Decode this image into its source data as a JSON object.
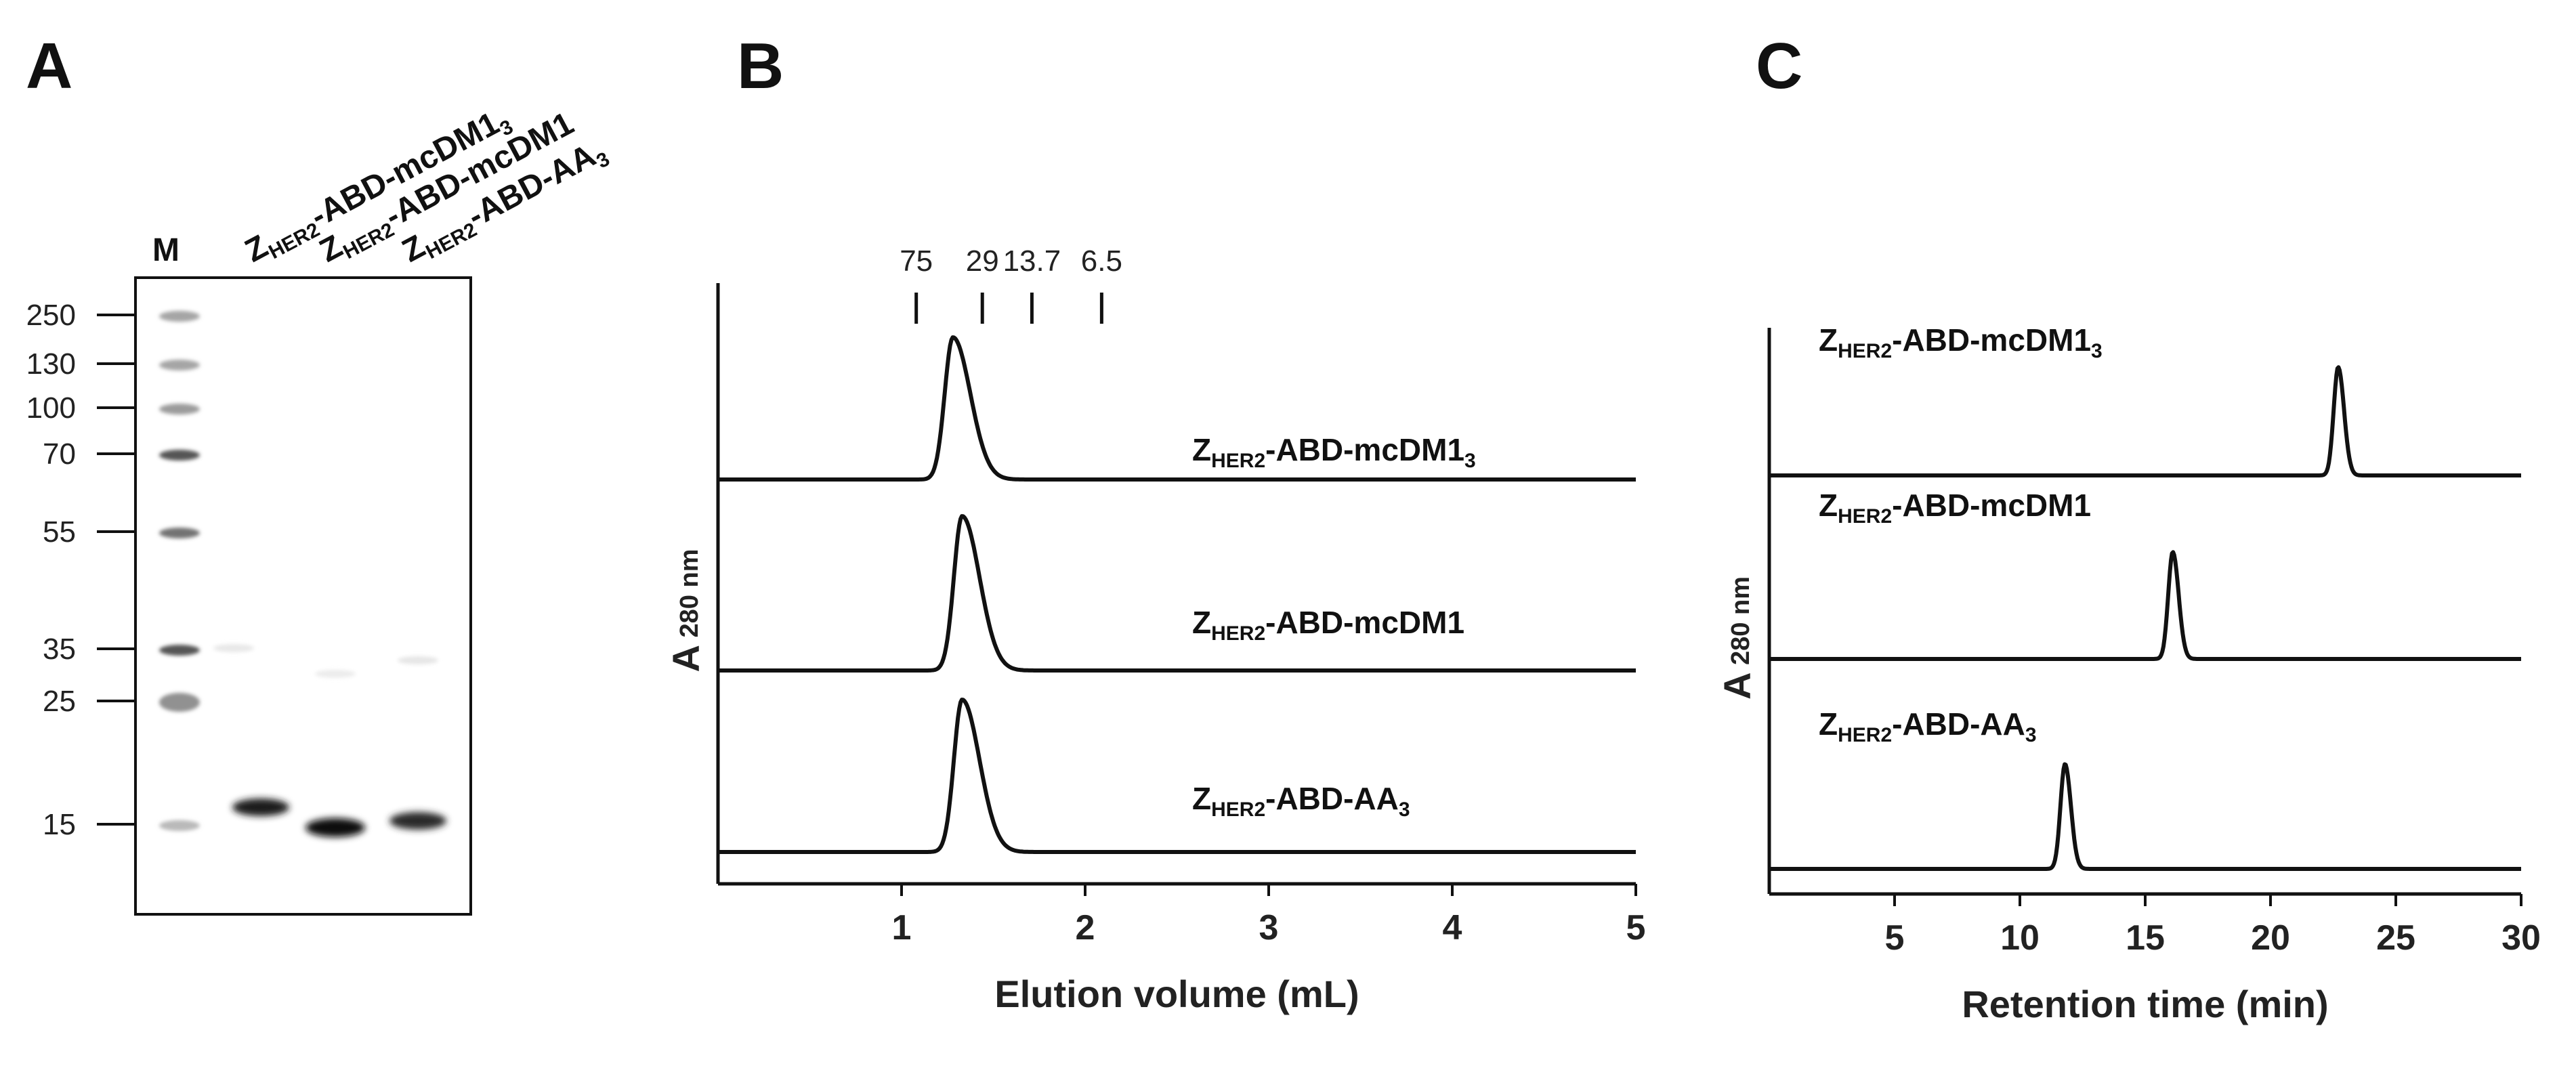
{
  "panels": {
    "A": {
      "letter": "A",
      "marker_label": "M",
      "mw_markers": [
        "250",
        "130",
        "100",
        "70",
        "55",
        "35",
        "25",
        "15"
      ],
      "lanes": [
        {
          "base": "Z",
          "sub": "HER2",
          "rest": "-ABD-mcDM1",
          "rest_sub": "3"
        },
        {
          "base": "Z",
          "sub": "HER2",
          "rest": "-ABD-mcDM1",
          "rest_sub": ""
        },
        {
          "base": "Z",
          "sub": "HER2",
          "rest": "-ABD-AA",
          "rest_sub": "3"
        }
      ]
    },
    "B": {
      "letter": "B"
    },
    "C": {
      "letter": "C"
    }
  },
  "chart_data": [
    {
      "type": "line",
      "panel": "B",
      "xlabel": "Elution volume (mL)",
      "ylabel": "A",
      "ylabel_sub": "280 nm",
      "xlim": [
        0,
        5
      ],
      "x_ticks": [
        "1",
        "2",
        "3",
        "4",
        "5"
      ],
      "standards": [
        {
          "label": "75",
          "x": 1.08
        },
        {
          "label": "29",
          "x": 1.44
        },
        {
          "label": "13.7",
          "x": 1.71
        },
        {
          "label": "6.5",
          "x": 2.09
        }
      ],
      "series": [
        {
          "base": "Z",
          "sub": "HER2",
          "rest": "-ABD-mcDM1",
          "rest_sub": "3",
          "peak_x": 1.28,
          "peak_rel_height": 1.0
        },
        {
          "base": "Z",
          "sub": "HER2",
          "rest": "-ABD-mcDM1",
          "rest_sub": "",
          "peak_x": 1.33,
          "peak_rel_height": 1.0
        },
        {
          "base": "Z",
          "sub": "HER2",
          "rest": "-ABD-AA",
          "rest_sub": "3",
          "peak_x": 1.33,
          "peak_rel_height": 1.0
        }
      ]
    },
    {
      "type": "line",
      "panel": "C",
      "xlabel": "Retention time (min)",
      "ylabel": "A",
      "ylabel_sub": "280 nm",
      "xlim": [
        0,
        30
      ],
      "x_ticks": [
        "5",
        "10",
        "15",
        "20",
        "25",
        "30"
      ],
      "series": [
        {
          "base": "Z",
          "sub": "HER2",
          "rest": "-ABD-mcDM1",
          "rest_sub": "3",
          "peak_x": 22.7,
          "peak_rel_height": 1.0
        },
        {
          "base": "Z",
          "sub": "HER2",
          "rest": "-ABD-mcDM1",
          "rest_sub": "",
          "peak_x": 16.1,
          "peak_rel_height": 1.0
        },
        {
          "base": "Z",
          "sub": "HER2",
          "rest": "-ABD-AA",
          "rest_sub": "3",
          "peak_x": 11.8,
          "peak_rel_height": 1.0
        }
      ]
    }
  ]
}
